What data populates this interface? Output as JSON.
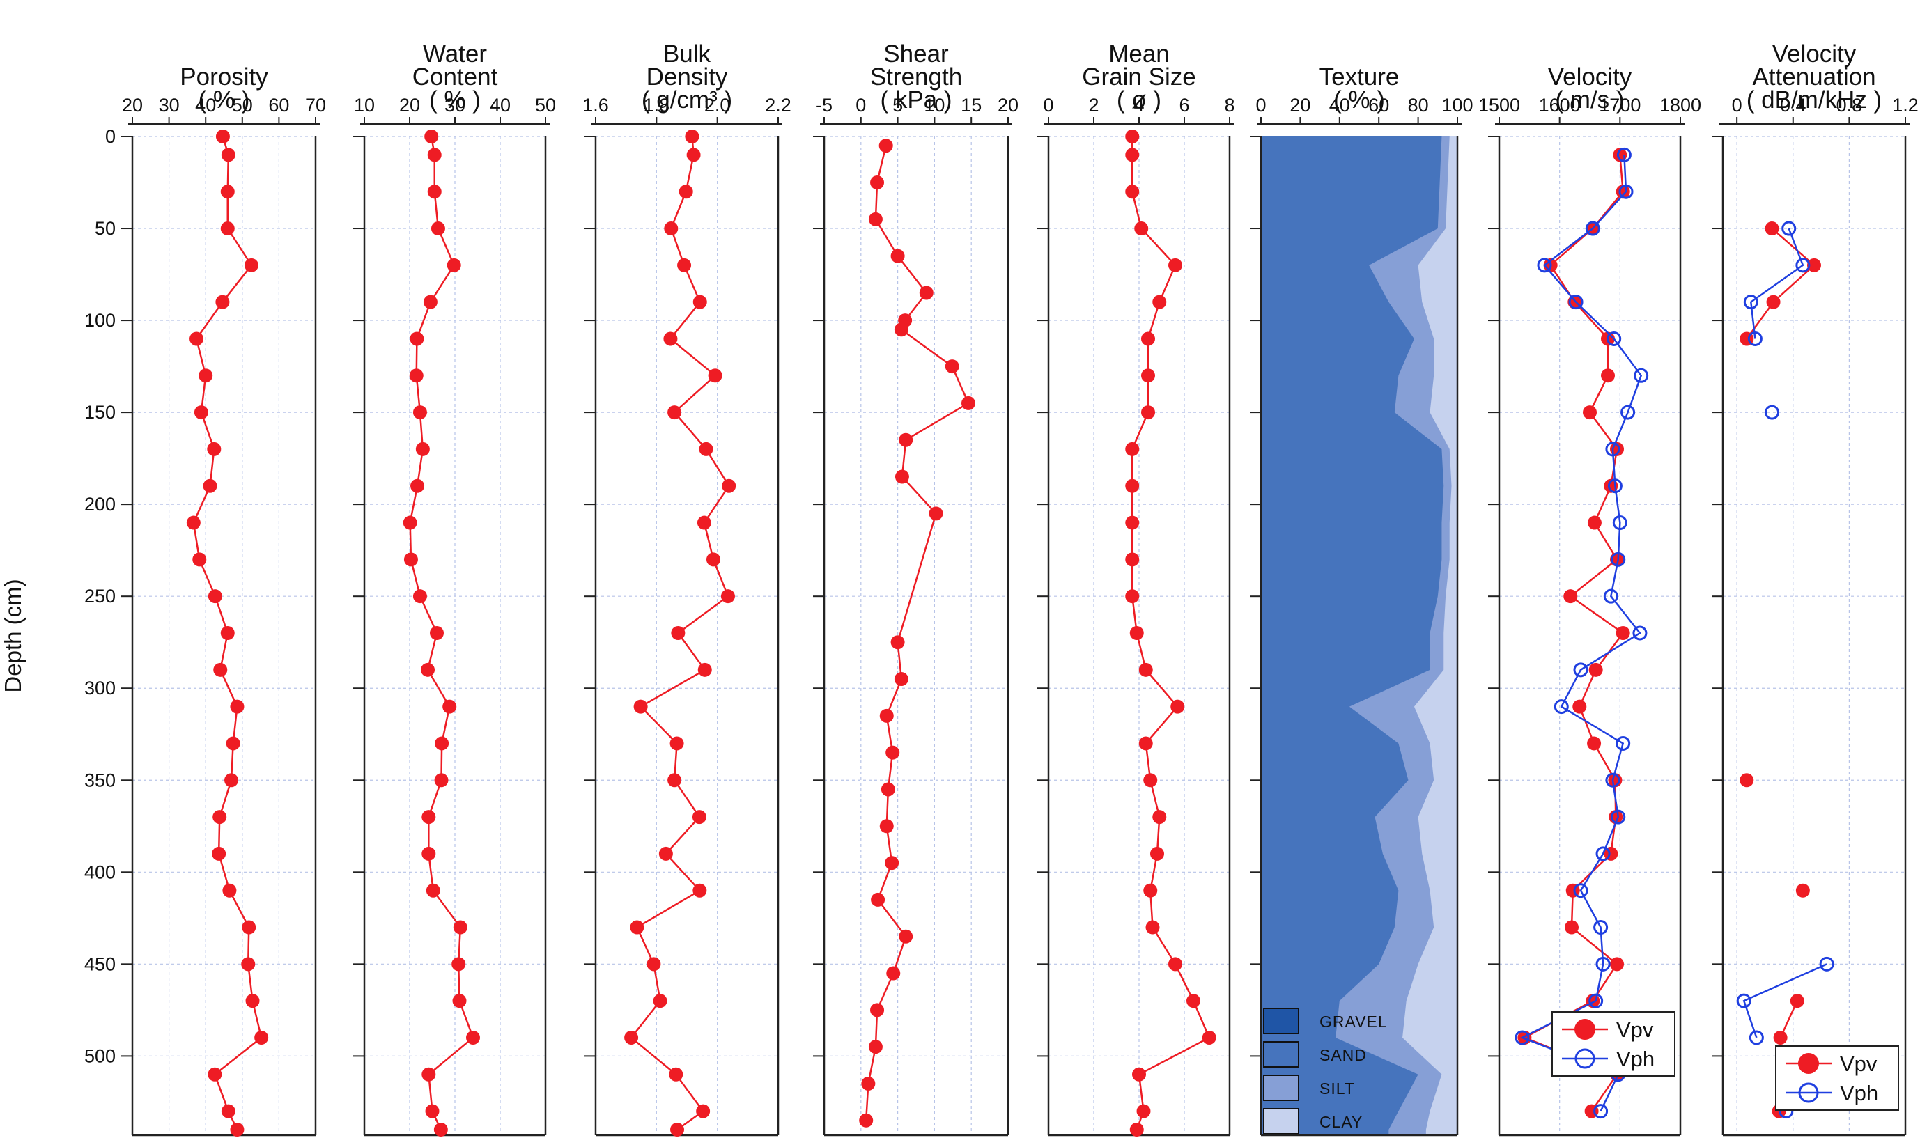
{
  "y_axis": {
    "title": "Depth (cm)",
    "range": [
      0,
      540
    ],
    "ticks": [
      0,
      50,
      100,
      150,
      200,
      250,
      300,
      350,
      400,
      450,
      500
    ]
  },
  "colors": {
    "red": "#ee1c24",
    "blue": "#1f3fe0",
    "gravel": "#1f55a6",
    "sand": "#4674bd",
    "silt": "#869fd6",
    "clay": "#c6d2ee",
    "grid": "#b8c4e8"
  },
  "chart_data": [
    {
      "type": "line",
      "id": "porosity",
      "title": [
        "Porosity",
        "( % )"
      ],
      "xlim": [
        20,
        70
      ],
      "xticks": [
        20,
        30,
        40,
        50,
        60,
        70
      ],
      "ylabel": "Depth (cm)",
      "series": [
        {
          "color": "#ee1c24",
          "x": [
            44.7,
            46.2,
            46.0,
            46.0,
            52.5,
            44.6,
            37.5,
            40.0,
            38.8,
            42.3,
            41.2,
            36.7,
            38.3,
            42.6,
            46.0,
            44.0,
            48.6,
            47.5,
            47.0,
            43.8,
            43.6,
            46.5,
            51.8,
            51.6,
            52.8,
            55.2,
            42.5,
            46.2,
            48.6
          ],
          "y": [
            0,
            10,
            30,
            50,
            70,
            90,
            110,
            130,
            150,
            170,
            190,
            210,
            230,
            250,
            270,
            290,
            310,
            330,
            350,
            370,
            390,
            410,
            430,
            450,
            470,
            490,
            510,
            530,
            540
          ]
        }
      ]
    },
    {
      "type": "line",
      "id": "water",
      "title": [
        "Water",
        "Content",
        "( % )"
      ],
      "xlim": [
        10,
        50
      ],
      "xticks": [
        10,
        20,
        30,
        40,
        50
      ],
      "series": [
        {
          "color": "#ee1c24",
          "x": [
            24.8,
            25.5,
            25.5,
            26.3,
            29.8,
            24.6,
            21.6,
            21.5,
            22.3,
            22.9,
            21.7,
            20.1,
            20.3,
            22.3,
            26.0,
            24.0,
            28.8,
            27.1,
            27.0,
            24.2,
            24.2,
            25.2,
            31.2,
            30.8,
            31.0,
            34.0,
            24.2,
            25.0,
            26.9
          ],
          "y": [
            0,
            10,
            30,
            50,
            70,
            90,
            110,
            130,
            150,
            170,
            190,
            210,
            230,
            250,
            270,
            290,
            310,
            330,
            350,
            370,
            390,
            410,
            430,
            450,
            470,
            490,
            510,
            530,
            540
          ]
        }
      ]
    },
    {
      "type": "line",
      "id": "bulk",
      "title": [
        "Bulk",
        "Density",
        "( g/cm³ )"
      ],
      "xlim": [
        1.6,
        2.2
      ],
      "xticks": [
        1.6,
        1.8,
        2.0,
        2.2
      ],
      "xticklabels": [
        "1.6",
        "1.8",
        "2.0",
        "2.2"
      ],
      "series": [
        {
          "color": "#ee1c24",
          "x": [
            1.917,
            1.922,
            1.897,
            1.848,
            1.891,
            1.943,
            1.846,
            1.993,
            1.859,
            1.963,
            2.038,
            1.957,
            1.987,
            2.035,
            1.871,
            1.959,
            1.748,
            1.867,
            1.859,
            1.941,
            1.831,
            1.942,
            1.736,
            1.791,
            1.812,
            1.717,
            1.864,
            1.953,
            1.868
          ],
          "y": [
            0,
            10,
            30,
            50,
            70,
            90,
            110,
            130,
            150,
            170,
            190,
            210,
            230,
            250,
            270,
            290,
            310,
            330,
            350,
            370,
            390,
            410,
            430,
            450,
            470,
            490,
            510,
            530,
            540
          ]
        }
      ]
    },
    {
      "type": "line",
      "id": "shear",
      "title": [
        "Shear",
        "Strength",
        "( kPa )"
      ],
      "xlim": [
        -5,
        20
      ],
      "xticks": [
        -5,
        0,
        5,
        10,
        15,
        20
      ],
      "series": [
        {
          "color": "#ee1c24",
          "x": [
            3.4,
            2.2,
            2.0,
            5.0,
            8.9,
            6.0,
            5.5,
            12.4,
            14.6,
            6.1,
            5.6,
            10.2,
            5.0,
            5.5,
            3.5,
            4.3,
            3.7,
            3.5,
            4.2,
            2.3,
            6.1,
            4.4,
            2.2,
            2.0,
            1.0,
            0.7
          ],
          "y": [
            5,
            25,
            45,
            65,
            85,
            100,
            105,
            125,
            145,
            165,
            185,
            205,
            275,
            295,
            315,
            335,
            355,
            375,
            395,
            415,
            435,
            455,
            475,
            495,
            515,
            535
          ]
        }
      ]
    },
    {
      "type": "line",
      "id": "grain",
      "title": [
        "Mean",
        "Grain Size",
        "( ø )"
      ],
      "xlim": [
        0,
        8
      ],
      "xticks": [
        0,
        2,
        4,
        6,
        8
      ],
      "series": [
        {
          "color": "#ee1c24",
          "x": [
            3.7,
            3.7,
            3.7,
            4.1,
            5.6,
            4.9,
            4.4,
            4.4,
            4.4,
            3.7,
            3.7,
            3.7,
            3.7,
            3.7,
            3.9,
            4.3,
            5.7,
            4.3,
            4.5,
            4.9,
            4.8,
            4.5,
            4.6,
            5.6,
            6.4,
            7.1,
            4.0,
            4.2,
            3.9
          ],
          "y": [
            0,
            10,
            30,
            50,
            70,
            90,
            110,
            130,
            150,
            170,
            190,
            210,
            230,
            250,
            270,
            290,
            310,
            330,
            350,
            370,
            390,
            410,
            430,
            450,
            470,
            490,
            510,
            530,
            540
          ]
        }
      ]
    },
    {
      "type": "area",
      "id": "texture",
      "title": [
        "Texture",
        "( % )"
      ],
      "xlim": [
        0,
        100
      ],
      "xticks": [
        0,
        20,
        40,
        60,
        80,
        100
      ],
      "y": [
        0,
        50,
        70,
        90,
        110,
        130,
        150,
        170,
        190,
        210,
        230,
        250,
        270,
        290,
        310,
        330,
        350,
        370,
        390,
        410,
        430,
        450,
        470,
        490,
        510,
        530,
        540
      ],
      "gravel_sand": [
        92,
        90,
        55,
        65,
        78,
        70,
        68,
        92,
        93,
        92,
        92,
        90,
        86,
        86,
        45,
        70,
        75,
        58,
        62,
        70,
        68,
        60,
        40,
        38,
        80,
        70,
        65
      ],
      "silt": [
        96,
        94,
        80,
        82,
        88,
        88,
        86,
        96,
        97,
        96,
        96,
        94,
        93,
        93,
        78,
        86,
        88,
        80,
        82,
        86,
        88,
        80,
        74,
        72,
        92,
        86,
        84
      ],
      "clay": [
        100,
        100,
        100,
        100,
        100,
        100,
        100,
        100,
        100,
        100,
        100,
        100,
        100,
        100,
        100,
        100,
        100,
        100,
        100,
        100,
        100,
        100,
        100,
        100,
        100,
        100,
        100
      ],
      "legend": [
        "GRAVEL",
        "SAND",
        "SILT",
        "CLAY"
      ]
    },
    {
      "type": "line",
      "id": "velocity",
      "title": [
        "Velocity",
        "( m/s )"
      ],
      "xlim": [
        1500,
        1800
      ],
      "xticks": [
        1500,
        1600,
        1700,
        1800
      ],
      "legend": [
        "Vpv",
        "Vph"
      ],
      "series": [
        {
          "name": "Vpv",
          "color": "#ee1c24",
          "marker": "filled",
          "x": [
            1700,
            1705,
            1655,
            1585,
            1625,
            1680,
            1680,
            1650,
            1695,
            1685,
            1658,
            1695,
            1618,
            1705,
            1660,
            1633,
            1657,
            1692,
            1693,
            1685,
            1622,
            1620,
            1695,
            1655,
            1542,
            1695,
            1653
          ],
          "y": [
            10,
            30,
            50,
            70,
            90,
            110,
            130,
            150,
            170,
            190,
            210,
            230,
            250,
            270,
            290,
            310,
            330,
            350,
            370,
            390,
            410,
            430,
            450,
            470,
            490,
            510,
            530
          ]
        },
        {
          "name": "Vph",
          "color": "#1f3fe0",
          "marker": "open",
          "x": [
            1707,
            1710,
            1655,
            1575,
            1627,
            1690,
            1735,
            1713,
            1688,
            1692,
            1700,
            1697,
            1685,
            1733,
            1635,
            1603,
            1705,
            1688,
            1697,
            1672,
            1635,
            1668,
            1672,
            1660,
            1538,
            1697,
            1668
          ],
          "y": [
            10,
            30,
            50,
            70,
            90,
            110,
            130,
            150,
            170,
            190,
            210,
            230,
            250,
            270,
            290,
            310,
            330,
            350,
            370,
            390,
            410,
            430,
            450,
            470,
            490,
            510,
            530
          ]
        }
      ]
    },
    {
      "type": "line",
      "id": "atten",
      "title": [
        "Velocity",
        "Attenuation",
        "( dB/m/kHz )"
      ],
      "xlim": [
        -0.1,
        1.2
      ],
      "xticks": [
        0,
        0.4,
        0.8,
        1.2
      ],
      "xticklabels": [
        "0",
        "0.4",
        "0.8",
        "1.2"
      ],
      "legend": [
        "Vpv",
        "Vph"
      ],
      "series": [
        {
          "name": "Vpv",
          "color": "#ee1c24",
          "marker": "filled",
          "segments": [
            {
              "x": [
                0.25,
                0.55,
                0.26,
                0.07
              ],
              "y": [
                50,
                70,
                90,
                110
              ]
            },
            {
              "x": [
                0.07
              ],
              "y": [
                350
              ]
            },
            {
              "x": [
                0.47
              ],
              "y": [
                410
              ]
            },
            {
              "x": [
                0.43,
                0.31
              ],
              "y": [
                470,
                490
              ]
            },
            {
              "x": [
                0.3
              ],
              "y": [
                530
              ]
            }
          ]
        },
        {
          "name": "Vph",
          "color": "#1f3fe0",
          "marker": "open",
          "segments": [
            {
              "x": [
                0.37,
                0.47,
                0.1,
                0.13
              ],
              "y": [
                50,
                70,
                90,
                110
              ]
            },
            {
              "x": [
                0.25
              ],
              "y": [
                150
              ]
            },
            {
              "x": [
                0.64,
                0.05,
                0.14
              ],
              "y": [
                450,
                470,
                490
              ]
            },
            {
              "x": [
                0.35
              ],
              "y": [
                530
              ]
            }
          ]
        }
      ]
    }
  ]
}
